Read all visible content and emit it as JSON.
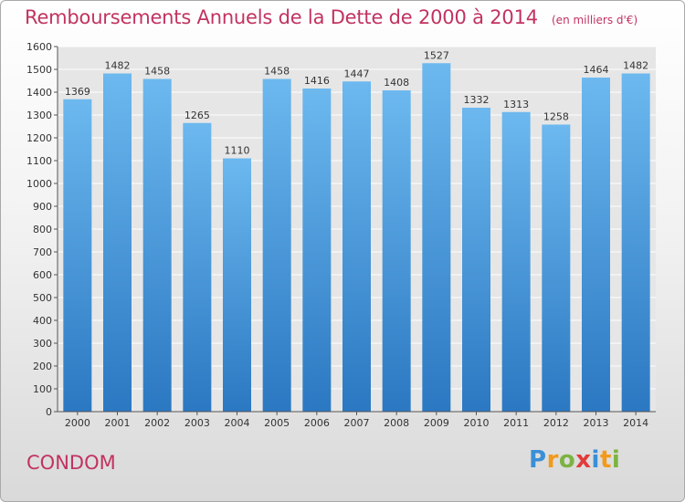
{
  "title": "Remboursements Annuels de la Dette de 2000 à 2014",
  "subtitle": "(en milliers d'€)",
  "commune": "CONDOM",
  "brand": {
    "text": "Proxiti",
    "letter_colors": [
      "#3a8fd6",
      "#f29a1a",
      "#7cb342",
      "#e23b3b",
      "#3a8fd6",
      "#f29a1a",
      "#7cb342"
    ]
  },
  "colors": {
    "bar_top": "#6cb8ef",
    "bar_bottom": "#2b78c2",
    "plot_bg": "#e6e6e6",
    "grid": "#ffffff",
    "title": "#c2335f"
  },
  "chart_data": {
    "type": "bar",
    "title": "Remboursements Annuels de la Dette de 2000 à 2014",
    "subtitle": "(en milliers d'€)",
    "xlabel": "",
    "ylabel": "",
    "categories": [
      "2000",
      "2001",
      "2002",
      "2003",
      "2004",
      "2005",
      "2006",
      "2007",
      "2008",
      "2009",
      "2010",
      "2011",
      "2012",
      "2013",
      "2014"
    ],
    "values": [
      1369,
      1482,
      1458,
      1265,
      1110,
      1458,
      1416,
      1447,
      1408,
      1527,
      1332,
      1313,
      1258,
      1464,
      1482
    ],
    "ylim": [
      0,
      1600
    ],
    "yticks": [
      0,
      100,
      200,
      300,
      400,
      500,
      600,
      700,
      800,
      900,
      1000,
      1100,
      1200,
      1300,
      1400,
      1500,
      1600
    ],
    "grid": true,
    "data_labels": true,
    "legend": "none"
  }
}
